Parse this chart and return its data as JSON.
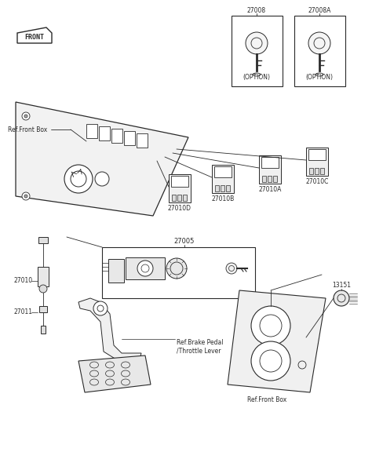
{
  "bg_color": "#ffffff",
  "line_color": "#2a2a2a",
  "fig_width": 4.74,
  "fig_height": 5.9,
  "dpi": 100,
  "labels": {
    "front": "FRONT",
    "ref_front_box1": "Ref.Front Box",
    "ref_front_box2": "Ref.Front Box",
    "ref_brake": "Ref.Brake Pedal\n/Throttle Lever",
    "part_27008": "27008",
    "part_27008A": "27008A",
    "part_27010": "27010",
    "part_27010A": "27010A",
    "part_27010B": "27010B",
    "part_27010C": "27010C",
    "part_27010D": "27010D",
    "part_27011": "27011",
    "part_27005": "27005",
    "part_13151": "13151",
    "option1": "(OPTION)",
    "option2": "(OPTION)"
  }
}
